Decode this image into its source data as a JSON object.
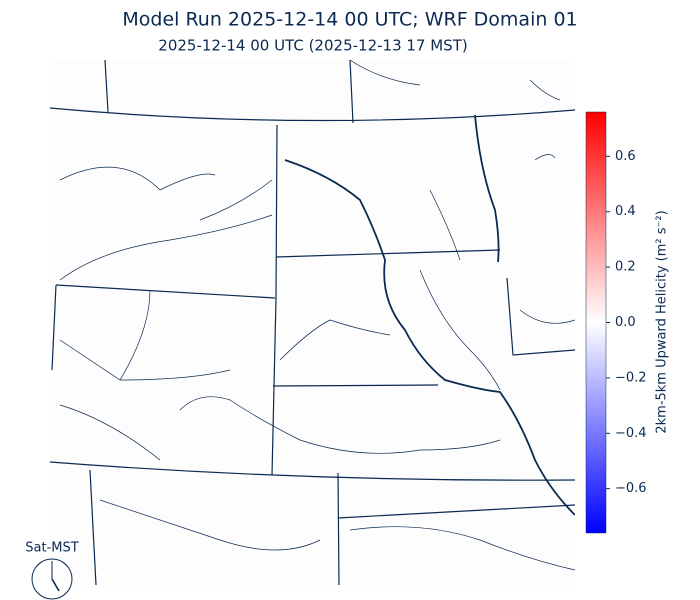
{
  "map": {
    "title": "Model Run 2025-12-14 00 UTC; WRF Domain 01",
    "subtitle": "2025-12-14 00 UTC  (2025-12-13 17 MST)",
    "clock_label": "Sat-MST",
    "colorbar": {
      "label": "2km-5km Upward Helicity (m² s⁻²)",
      "colors": [
        "#0000ff",
        "#ffffff",
        "#ff0000"
      ],
      "lim": [
        -0.76,
        0.76
      ],
      "ticks": [
        {
          "value": -0.6,
          "label": "−0.6"
        },
        {
          "value": -0.4,
          "label": "−0.4"
        },
        {
          "value": -0.2,
          "label": "−0.2"
        },
        {
          "value": 0,
          "label": "0.0"
        },
        0.2,
        0.4,
        0.6
      ]
    }
  }
}
